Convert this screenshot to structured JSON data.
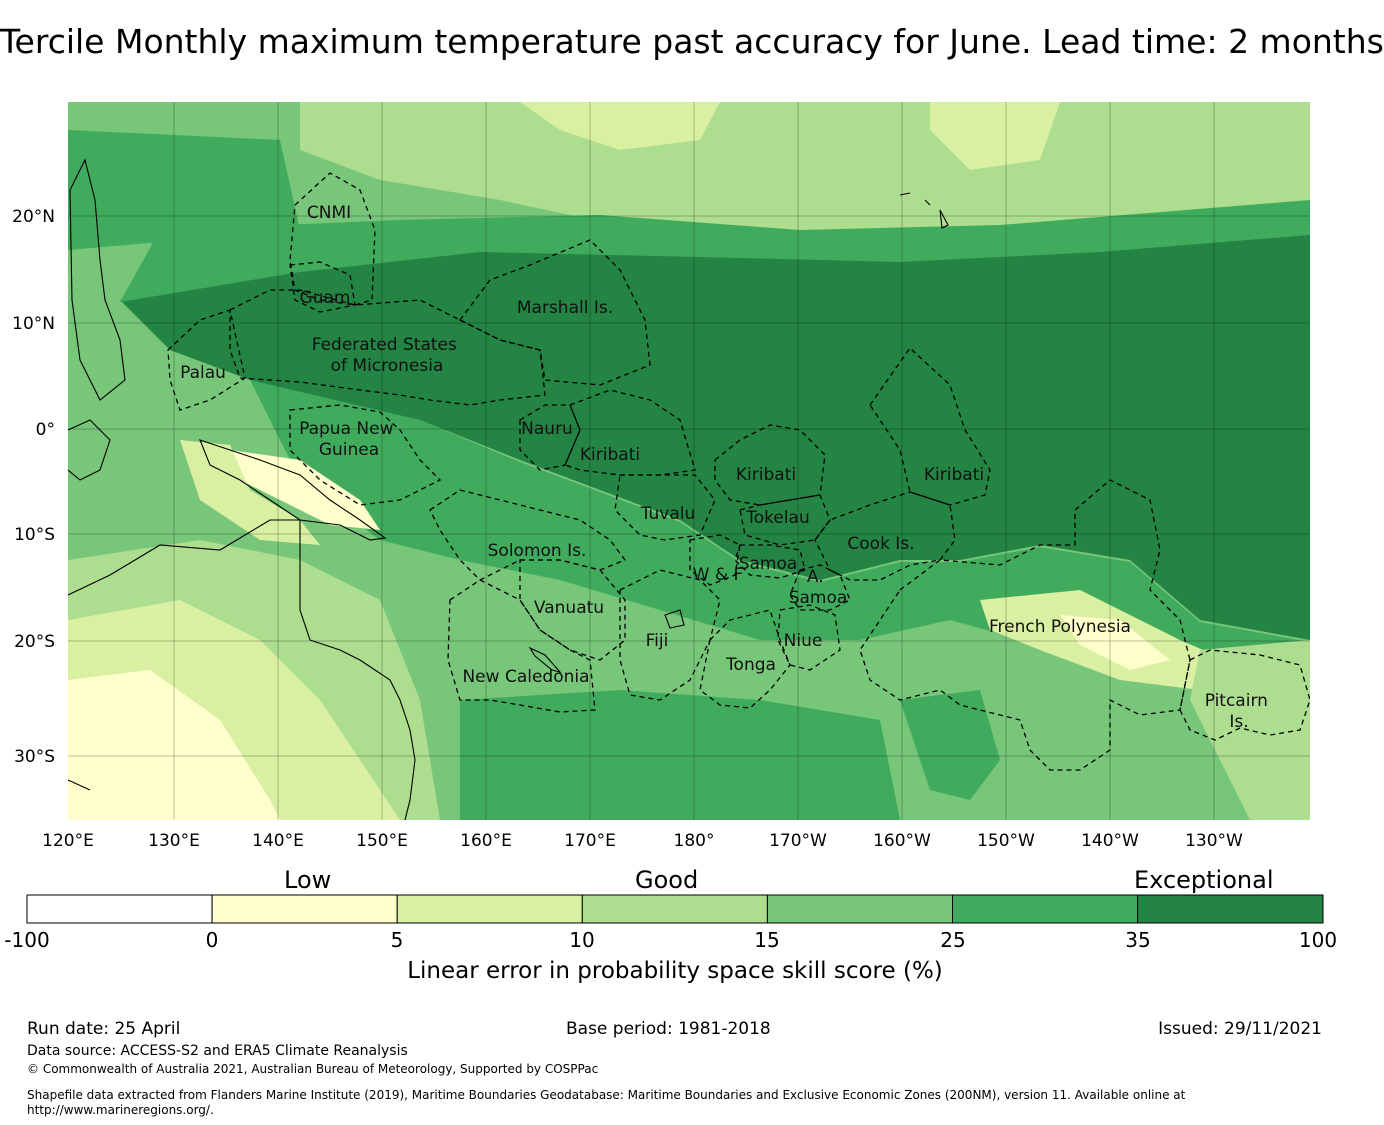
{
  "title": "Tercile Monthly maximum temperature past accuracy for June. Lead time: 2 months",
  "map": {
    "lon_ticks": [
      "120°E",
      "130°E",
      "140°E",
      "150°E",
      "160°E",
      "170°E",
      "180°",
      "170°W",
      "160°W",
      "150°W",
      "140°W",
      "130°W"
    ],
    "lat_ticks": [
      "20°N",
      "10°N",
      "0°",
      "10°S",
      "20°S",
      "30°S"
    ],
    "regions": [
      {
        "name": "cnmi",
        "lines": [
          "CNMI"
        ]
      },
      {
        "name": "guam",
        "lines": [
          "Guam"
        ]
      },
      {
        "name": "marshall-is",
        "lines": [
          "Marshall Is."
        ]
      },
      {
        "name": "fsm",
        "lines": [
          "Federated States",
          "of Micronesia"
        ]
      },
      {
        "name": "palau",
        "lines": [
          "Palau"
        ]
      },
      {
        "name": "png",
        "lines": [
          "Papua New",
          "Guinea"
        ]
      },
      {
        "name": "nauru",
        "lines": [
          "Nauru"
        ]
      },
      {
        "name": "kiribati-west",
        "lines": [
          "Kiribati"
        ]
      },
      {
        "name": "kiribati-central",
        "lines": [
          "Kiribati"
        ]
      },
      {
        "name": "kiribati-east",
        "lines": [
          "Kiribati"
        ]
      },
      {
        "name": "tuvalu",
        "lines": [
          "Tuvalu"
        ]
      },
      {
        "name": "tokelau",
        "lines": [
          "Tokelau"
        ]
      },
      {
        "name": "solomon-is",
        "lines": [
          "Solomon Is."
        ]
      },
      {
        "name": "cook-is",
        "lines": [
          "Cook Is."
        ]
      },
      {
        "name": "samoa",
        "lines": [
          "Samoa"
        ]
      },
      {
        "name": "wallis-futuna",
        "lines": [
          "W & F"
        ]
      },
      {
        "name": "american-samoa",
        "lines": [
          "A.",
          "Samoa"
        ]
      },
      {
        "name": "vanuatu",
        "lines": [
          "Vanuatu"
        ]
      },
      {
        "name": "french-polynesia",
        "lines": [
          "French Polynesia"
        ]
      },
      {
        "name": "fiji",
        "lines": [
          "Fiji"
        ]
      },
      {
        "name": "niue",
        "lines": [
          "Niue"
        ]
      },
      {
        "name": "tonga",
        "lines": [
          "Tonga"
        ]
      },
      {
        "name": "new-caledonia",
        "lines": [
          "New Caledonia"
        ]
      },
      {
        "name": "pitcairn-is",
        "lines": [
          "Pitcairn",
          "Is."
        ]
      }
    ]
  },
  "colorbar": {
    "categories": [
      "Low",
      "Good",
      "Exceptional"
    ],
    "ticks": [
      "-100",
      "0",
      "5",
      "10",
      "15",
      "25",
      "35",
      "100"
    ],
    "colors": [
      "#ffffff",
      "#ffffcc",
      "#d9f0a3",
      "#addd8e",
      "#78c679",
      "#41ab5d",
      "#238443"
    ],
    "title": "Linear error in probability space skill score (%)"
  },
  "footer": {
    "run_date": "Run date: 25 April",
    "base_period": "Base period: 1981-2018",
    "issued": "Issued: 29/11/2021",
    "data_source": "Data source: ACCESS-S2 and ERA5 Climate Reanalysis",
    "copyright": "© Commonwealth of Australia 2021, Australian Bureau of Meteorology, Supported by COSPPac",
    "shapefile": "Shapefile data extracted from Flanders Marine Institute (2019), Maritime Boundaries Geodatabase: Maritime Boundaries and Exclusive Economic Zones (200NM), version 11. Available online at http://www.marineregions.org/."
  }
}
